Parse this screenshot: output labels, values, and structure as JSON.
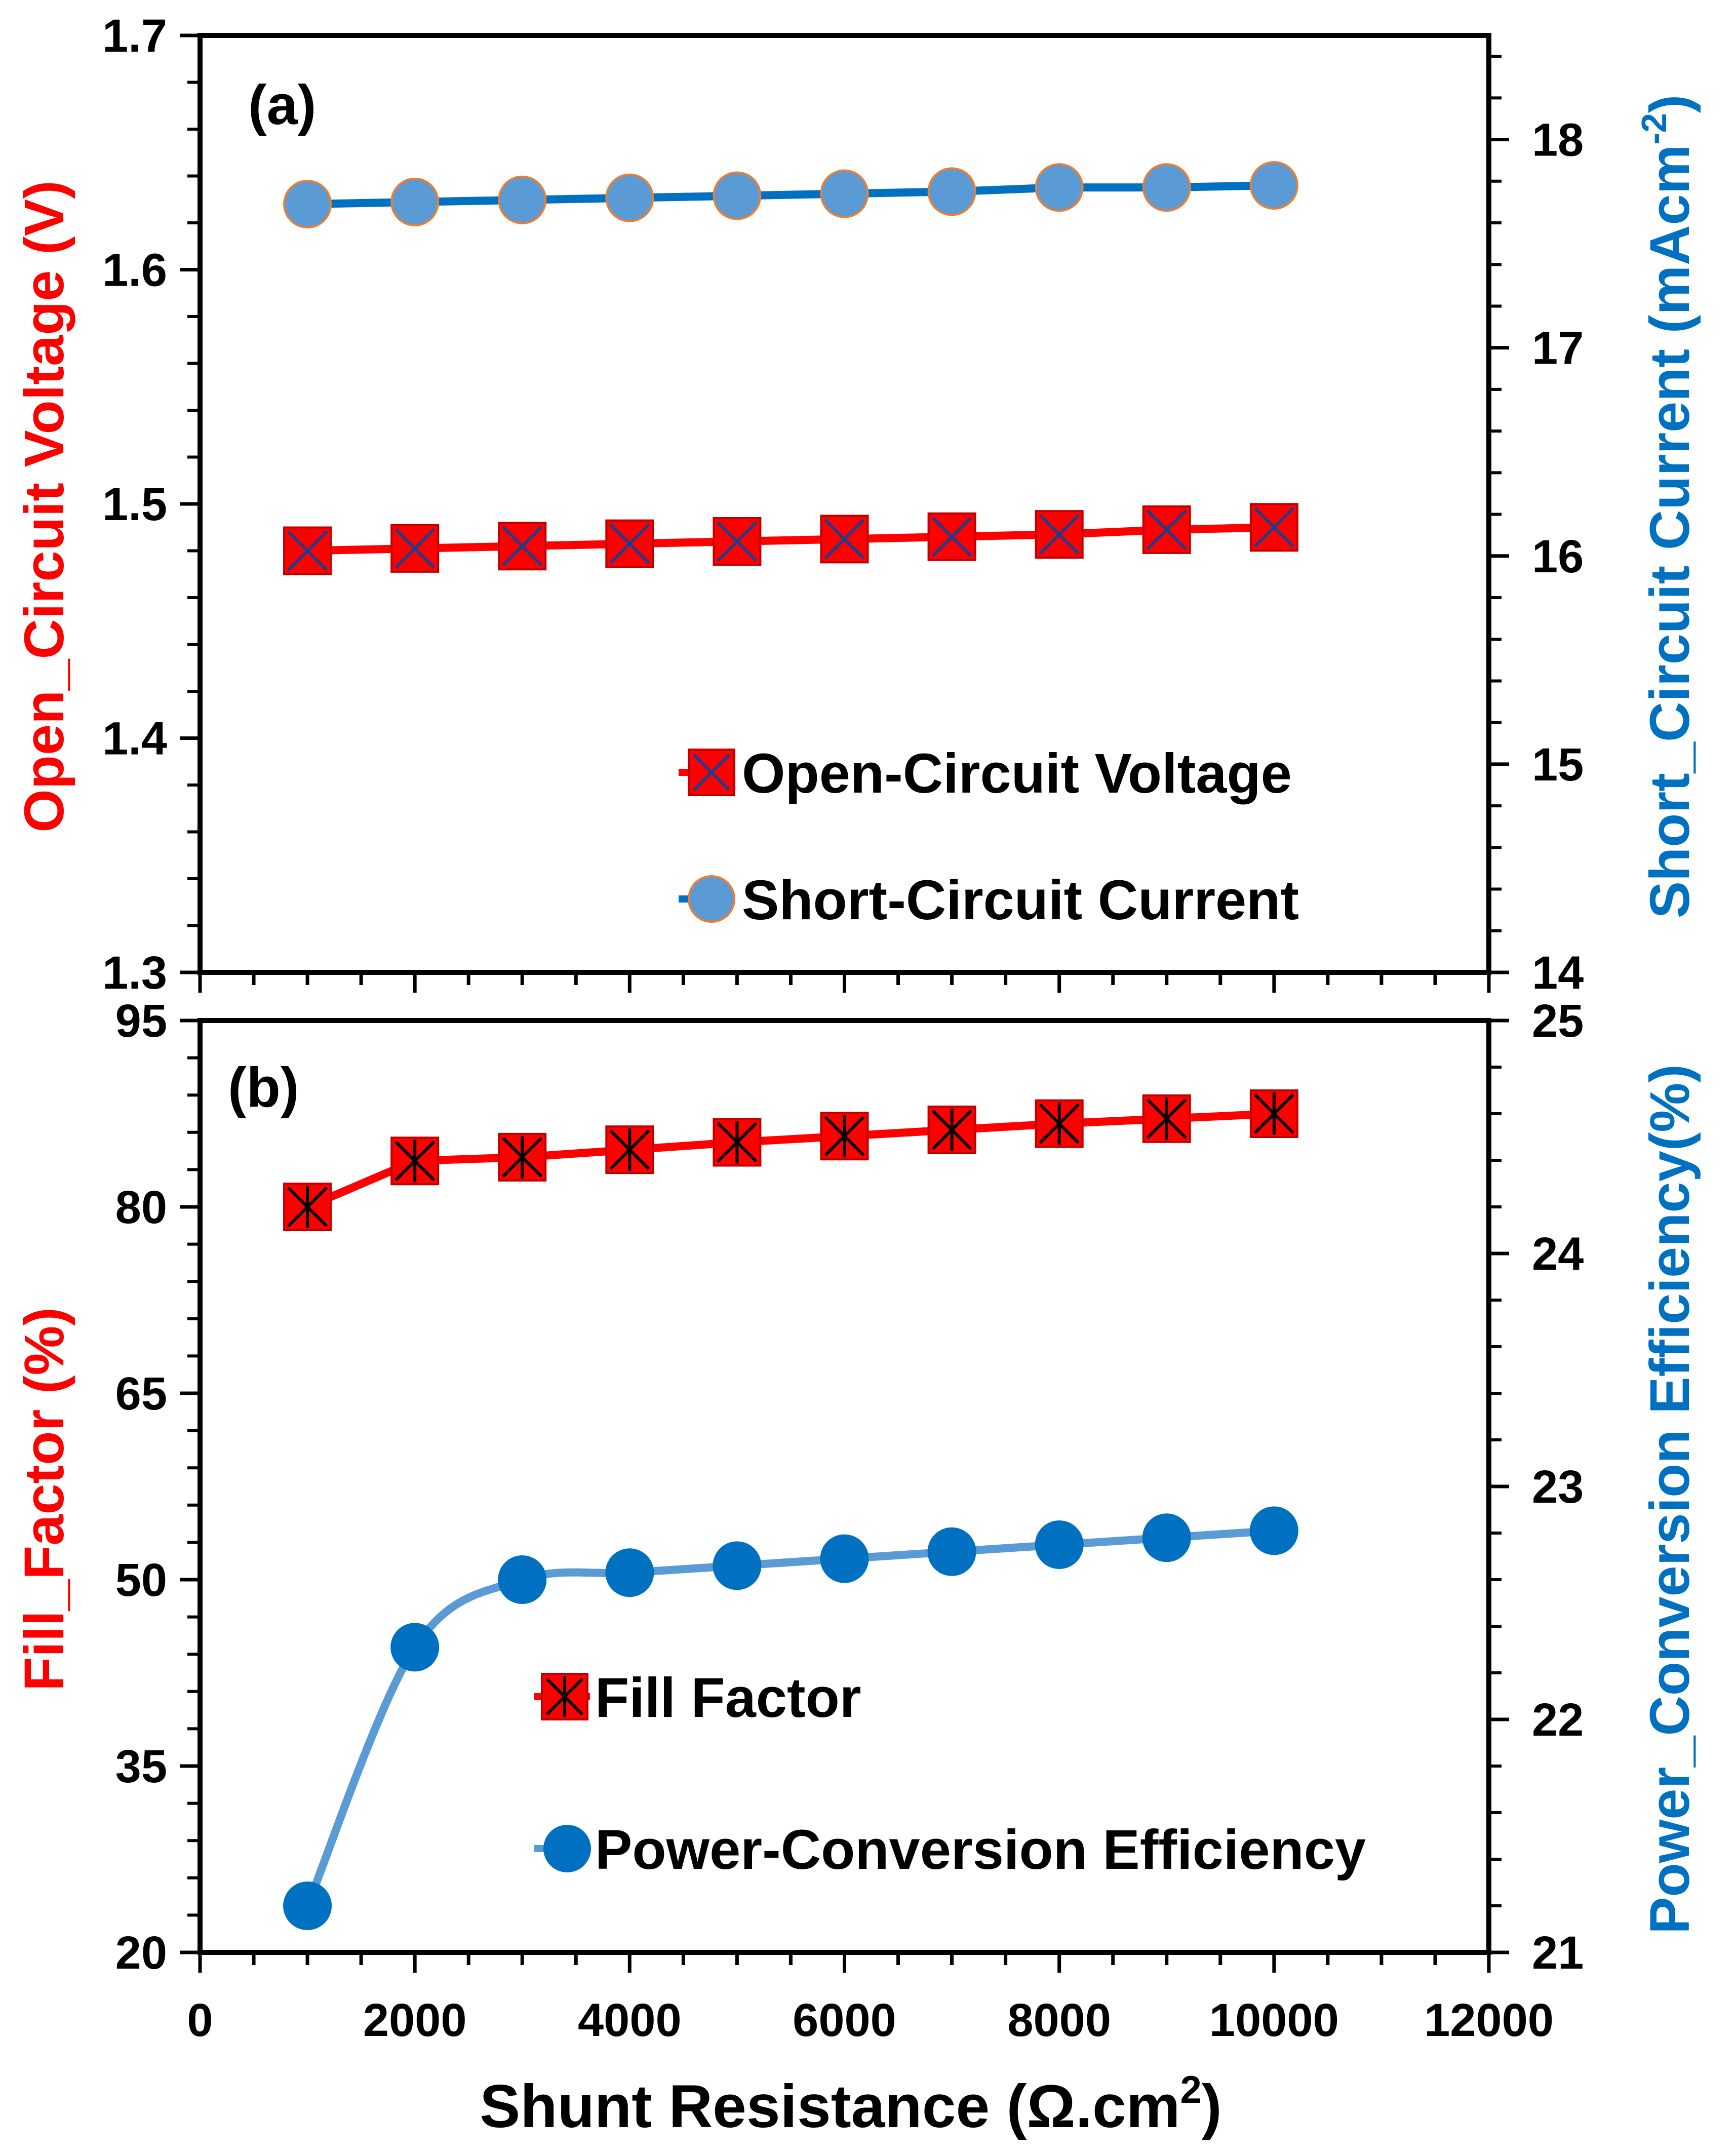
{
  "colors": {
    "red": "#ff0000",
    "blue_line": "#0070c0",
    "blue_marker": "#5b9bd5",
    "marker_edge_orange": "#ed7d31",
    "black": "#000000"
  },
  "chart_data": [
    {
      "type": "line",
      "panel": "(a)",
      "x": [
        1000,
        2000,
        3000,
        4000,
        5000,
        6000,
        7000,
        8000,
        9000,
        10000
      ],
      "xlim": [
        0,
        12000
      ],
      "xticks": [
        "0",
        "2000",
        "4000",
        "6000",
        "8000",
        "10000",
        "12000"
      ],
      "ylabel": "Open_Circuit Voltage (V)",
      "ylim": [
        1.3,
        1.7
      ],
      "yticks": [
        "1.3",
        "1.4",
        "1.5",
        "1.6",
        "1.7"
      ],
      "y2label_main": "Short_Circuit Current (mAcm",
      "y2label_sup": "-2",
      "y2label_end": ")",
      "y2lim": [
        14,
        18.5
      ],
      "y2ticks": [
        "14",
        "15",
        "16",
        "17",
        "18"
      ],
      "series": [
        {
          "name": "Open-Circuit Voltage",
          "axis": "left",
          "marker": "square-x",
          "values": [
            1.48,
            1.481,
            1.482,
            1.483,
            1.484,
            1.485,
            1.486,
            1.487,
            1.489,
            1.49
          ]
        },
        {
          "name": "Short-Circuit Current",
          "axis": "right",
          "marker": "circle",
          "values": [
            17.69,
            17.7,
            17.71,
            17.72,
            17.73,
            17.74,
            17.75,
            17.77,
            17.77,
            17.78
          ]
        }
      ]
    },
    {
      "type": "line",
      "panel": "(b)",
      "x": [
        1000,
        2000,
        3000,
        4000,
        5000,
        6000,
        7000,
        8000,
        9000,
        10000
      ],
      "xlim": [
        0,
        12000
      ],
      "xticks": [
        "0",
        "2000",
        "4000",
        "6000",
        "8000",
        "10000",
        "12000"
      ],
      "xlabel_main": "Shunt Resistance (Ω.cm",
      "xlabel_sup": "2",
      "xlabel_end": ")",
      "ylabel": "Fill_Factor (%)",
      "ylim": [
        20,
        95
      ],
      "yticks": [
        "20",
        "35",
        "50",
        "65",
        "80",
        "95"
      ],
      "y2label": "Power_Conversion Efficiency(%)",
      "y2lim": [
        21,
        25
      ],
      "y2ticks": [
        "21",
        "22",
        "23",
        "24",
        "25"
      ],
      "series": [
        {
          "name": "Fill Factor",
          "axis": "left",
          "marker": "square-star",
          "values": [
            80.0,
            83.7,
            84.0,
            84.6,
            85.2,
            85.7,
            86.2,
            86.7,
            87.1,
            87.5
          ]
        },
        {
          "name": "Power-Conversion Efficiency",
          "axis": "right",
          "marker": "circle",
          "values": [
            21.2,
            22.31,
            22.6,
            22.63,
            22.66,
            22.69,
            22.72,
            22.75,
            22.78,
            22.81
          ]
        }
      ]
    }
  ]
}
